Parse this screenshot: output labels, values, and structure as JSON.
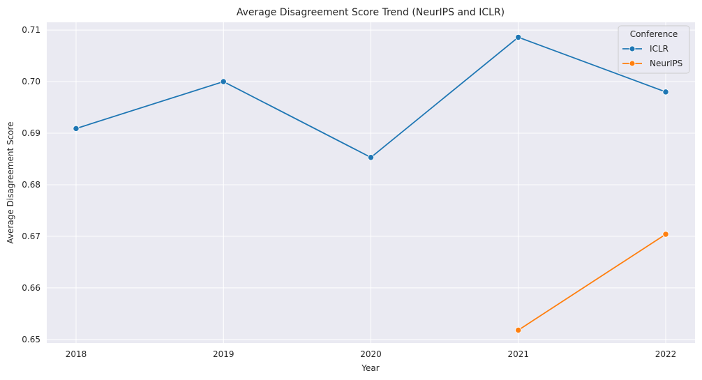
{
  "chart_data": {
    "type": "line",
    "title": "Average Disagreement Score Trend (NeurIPS and ICLR)",
    "xlabel": "Year",
    "ylabel": "Average Disagreement Score",
    "x": [
      2018,
      2019,
      2020,
      2021,
      2022
    ],
    "x_tick_labels": [
      "2018",
      "2019",
      "2020",
      "2021",
      "2022"
    ],
    "y_ticks": [
      0.65,
      0.66,
      0.67,
      0.68,
      0.69,
      0.7,
      0.71
    ],
    "y_tick_labels": [
      "0.65",
      "0.66",
      "0.67",
      "0.68",
      "0.69",
      "0.70",
      "0.71"
    ],
    "ylim": [
      0.6493,
      0.7115
    ],
    "grid": true,
    "legend": {
      "title": "Conference",
      "placement": "top-right"
    },
    "series": [
      {
        "name": "ICLR",
        "color": "#1f77b4",
        "x": [
          2018,
          2019,
          2020,
          2021,
          2022
        ],
        "values": [
          0.6909,
          0.7,
          0.6853,
          0.7086,
          0.698
        ]
      },
      {
        "name": "NeurIPS",
        "color": "#ff7f0e",
        "x": [
          2021,
          2022
        ],
        "values": [
          0.6518,
          0.6704
        ]
      }
    ]
  },
  "colors": {
    "plot_background": "#eaeaf2",
    "grid": "#ffffff"
  }
}
